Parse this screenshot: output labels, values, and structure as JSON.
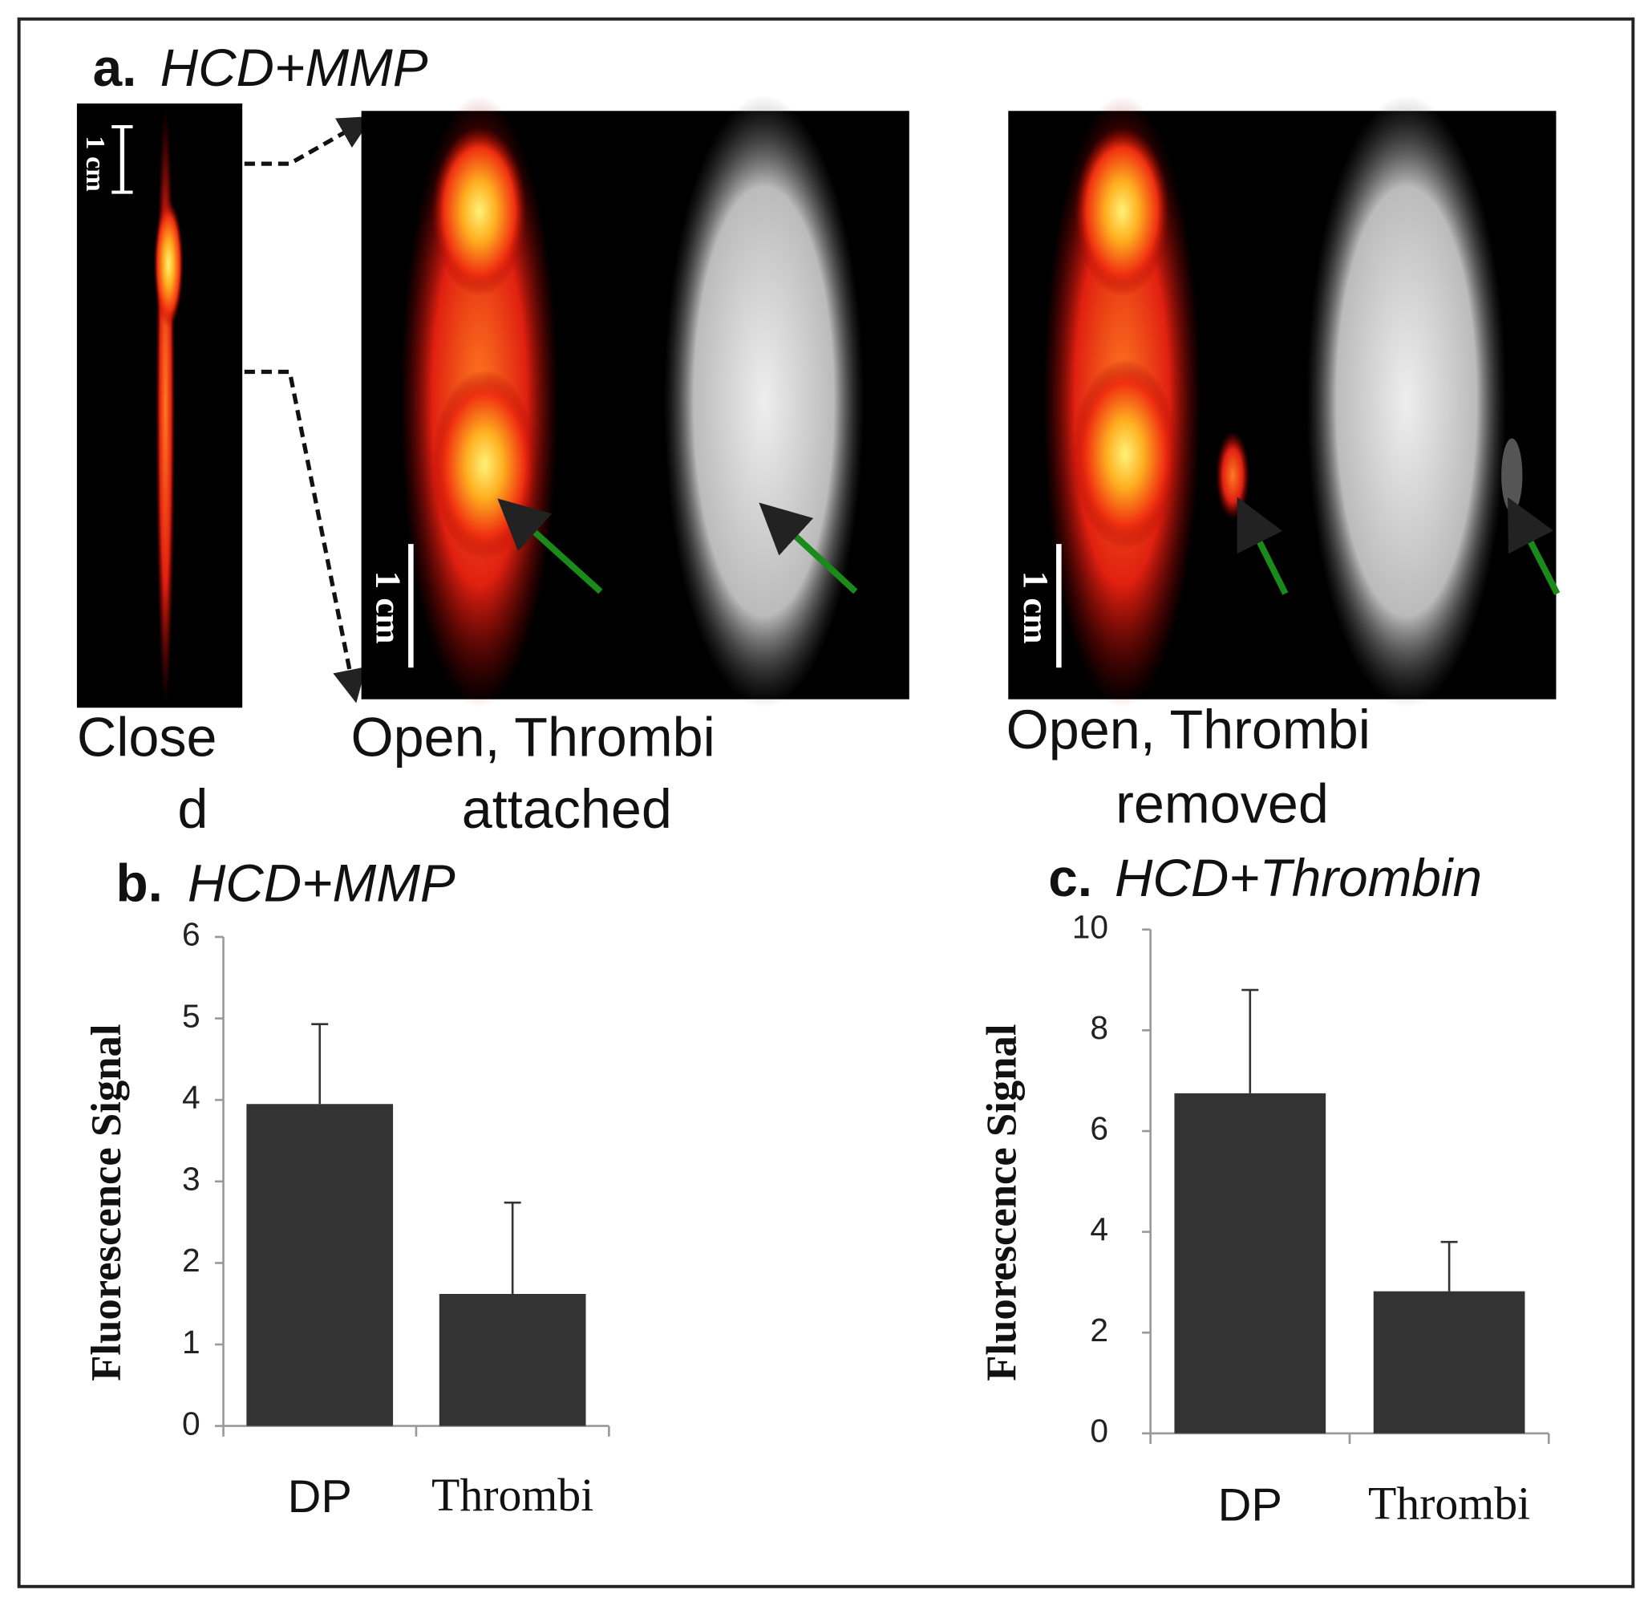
{
  "panel_a": {
    "label": "a.",
    "title": "HCD+MMP",
    "scale_labels": [
      "1 cm",
      "1 cm",
      "1 cm"
    ],
    "captions": [
      {
        "lines": [
          "Close",
          "d"
        ]
      },
      {
        "lines": [
          "Open, Thrombi",
          "attached"
        ]
      },
      {
        "lines": [
          "Open, Thrombi",
          "removed"
        ]
      }
    ]
  },
  "chart_data": [
    {
      "type": "bar",
      "label": "b.",
      "title": "HCD+MMP",
      "ylabel": "Fluorescence Signal",
      "categories": [
        "DP",
        "Thrombi"
      ],
      "values": [
        3.95,
        1.62
      ],
      "errors": [
        0.98,
        1.12
      ],
      "color": "#333333",
      "ylim": [
        0,
        6
      ],
      "yticks": [
        0,
        1,
        2,
        3,
        4,
        5,
        6
      ]
    },
    {
      "type": "bar",
      "label": "c.",
      "title": "HCD+Thrombin",
      "ylabel": "Fluorescence Signal",
      "categories": [
        "DP",
        "Thrombi"
      ],
      "values": [
        6.75,
        2.82
      ],
      "errors": [
        2.05,
        0.98
      ],
      "color": "#333333",
      "ylim": [
        0,
        10
      ],
      "yticks": [
        0,
        2,
        4,
        6,
        8,
        10
      ]
    }
  ]
}
